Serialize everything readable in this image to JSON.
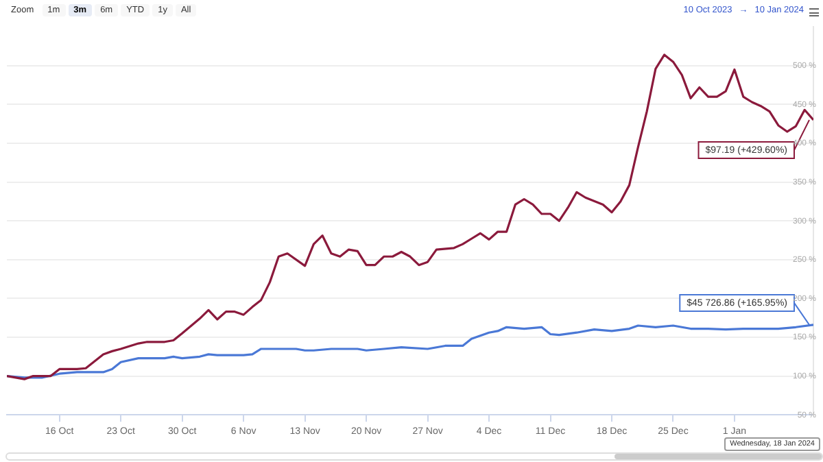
{
  "chart_data": {
    "type": "line",
    "xlim": [
      "2023-10-10",
      "2024-01-10"
    ],
    "xticks": [
      {
        "value": "2023-10-16",
        "label": "16 Oct"
      },
      {
        "value": "2023-10-23",
        "label": "23 Oct"
      },
      {
        "value": "2023-10-30",
        "label": "30 Oct"
      },
      {
        "value": "2023-11-06",
        "label": "6 Nov"
      },
      {
        "value": "2023-11-13",
        "label": "13 Nov"
      },
      {
        "value": "2023-11-20",
        "label": "20 Nov"
      },
      {
        "value": "2023-11-27",
        "label": "27 Nov"
      },
      {
        "value": "2023-12-04",
        "label": "4 Dec"
      },
      {
        "value": "2023-12-11",
        "label": "11 Dec"
      },
      {
        "value": "2023-12-18",
        "label": "18 Dec"
      },
      {
        "value": "2023-12-25",
        "label": "25 Dec"
      },
      {
        "value": "2024-01-01",
        "label": "1 Jan"
      }
    ],
    "ylim": [
      50,
      550
    ],
    "yticks": [
      {
        "value": 50,
        "label": "50 %"
      },
      {
        "value": 100,
        "label": "100 %"
      },
      {
        "value": 150,
        "label": "150 %"
      },
      {
        "value": 200,
        "label": "200 %"
      },
      {
        "value": 250,
        "label": "250 %"
      },
      {
        "value": 300,
        "label": "300 %"
      },
      {
        "value": 350,
        "label": "350 %"
      },
      {
        "value": 400,
        "label": "400 %"
      },
      {
        "value": 450,
        "label": "450 %"
      },
      {
        "value": 500,
        "label": "500 %"
      }
    ],
    "grid": "y",
    "legend": false,
    "marker": "none",
    "line_style": "solid",
    "series": [
      {
        "color": "#8b1a3c",
        "x": [
          "2023-10-10",
          "2023-10-12",
          "2023-10-13",
          "2023-10-15",
          "2023-10-16",
          "2023-10-18",
          "2023-10-19",
          "2023-10-21",
          "2023-10-22",
          "2023-10-23",
          "2023-10-25",
          "2023-10-26",
          "2023-10-28",
          "2023-10-29",
          "2023-10-30",
          "2023-11-01",
          "2023-11-02",
          "2023-11-03",
          "2023-11-04",
          "2023-11-05",
          "2023-11-06",
          "2023-11-07",
          "2023-11-08",
          "2023-11-09",
          "2023-11-10",
          "2023-11-11",
          "2023-11-13",
          "2023-11-14",
          "2023-11-15",
          "2023-11-16",
          "2023-11-17",
          "2023-11-18",
          "2023-11-19",
          "2023-11-20",
          "2023-11-21",
          "2023-11-22",
          "2023-11-23",
          "2023-11-24",
          "2023-11-25",
          "2023-11-26",
          "2023-11-27",
          "2023-11-28",
          "2023-11-30",
          "2023-12-01",
          "2023-12-02",
          "2023-12-03",
          "2023-12-04",
          "2023-12-05",
          "2023-12-06",
          "2023-12-07",
          "2023-12-08",
          "2023-12-09",
          "2023-12-10",
          "2023-12-11",
          "2023-12-12",
          "2023-12-13",
          "2023-12-14",
          "2023-12-15",
          "2023-12-17",
          "2023-12-18",
          "2023-12-19",
          "2023-12-20",
          "2023-12-21",
          "2023-12-22",
          "2023-12-23",
          "2023-12-24",
          "2023-12-25",
          "2023-12-26",
          "2023-12-27",
          "2023-12-28",
          "2023-12-29",
          "2023-12-30",
          "2023-12-31",
          "2024-01-01",
          "2024-01-02",
          "2024-01-03",
          "2024-01-04",
          "2024-01-05",
          "2024-01-06",
          "2024-01-07",
          "2024-01-08",
          "2024-01-09",
          "2024-01-10"
        ],
        "values": [
          100,
          96,
          100,
          100,
          109,
          109,
          110,
          128,
          132,
          135,
          142,
          144,
          144,
          146,
          155,
          174,
          185,
          173,
          183,
          183,
          179,
          189,
          198,
          221,
          254,
          258,
          242,
          270,
          281,
          258,
          254,
          263,
          261,
          243,
          243,
          254,
          254,
          260,
          254,
          243,
          247,
          263,
          265,
          270,
          277,
          284,
          276,
          286,
          286,
          321,
          328,
          321,
          309,
          309,
          300,
          317,
          337,
          330,
          321,
          311,
          325,
          346,
          395,
          441,
          496,
          514,
          505,
          488,
          458,
          472,
          460,
          460,
          467,
          495,
          460,
          453,
          448,
          441,
          423,
          415,
          422,
          443,
          430
        ]
      },
      {
        "color": "#4a78d6",
        "x": [
          "2023-10-10",
          "2023-10-12",
          "2023-10-14",
          "2023-10-16",
          "2023-10-18",
          "2023-10-19",
          "2023-10-21",
          "2023-10-22",
          "2023-10-23",
          "2023-10-25",
          "2023-10-26",
          "2023-10-28",
          "2023-10-29",
          "2023-10-30",
          "2023-11-01",
          "2023-11-02",
          "2023-11-03",
          "2023-11-04",
          "2023-11-06",
          "2023-11-07",
          "2023-11-08",
          "2023-11-09",
          "2023-11-11",
          "2023-11-12",
          "2023-11-13",
          "2023-11-14",
          "2023-11-16",
          "2023-11-17",
          "2023-11-19",
          "2023-11-20",
          "2023-11-22",
          "2023-11-24",
          "2023-11-27",
          "2023-11-29",
          "2023-12-01",
          "2023-12-02",
          "2023-12-04",
          "2023-12-05",
          "2023-12-06",
          "2023-12-08",
          "2023-12-10",
          "2023-12-11",
          "2023-12-12",
          "2023-12-14",
          "2023-12-16",
          "2023-12-18",
          "2023-12-20",
          "2023-12-21",
          "2023-12-23",
          "2023-12-25",
          "2023-12-27",
          "2023-12-29",
          "2023-12-31",
          "2024-01-02",
          "2024-01-04",
          "2024-01-06",
          "2024-01-08",
          "2024-01-10"
        ],
        "values": [
          100,
          98,
          98,
          103,
          105,
          105,
          105,
          109,
          118,
          123,
          123,
          123,
          125,
          123,
          125,
          128,
          127,
          127,
          127,
          128,
          135,
          135,
          135,
          135,
          133,
          133,
          135,
          135,
          135,
          133,
          135,
          137,
          135,
          139,
          139,
          148,
          156,
          158,
          163,
          161,
          163,
          154,
          153,
          156,
          160,
          158,
          161,
          165,
          163,
          165,
          161,
          161,
          160,
          161,
          161,
          161,
          163,
          166
        ]
      }
    ],
    "annotations": [
      "Zoom",
      "1m",
      "3m",
      "6m",
      "YTD",
      "1y",
      "All",
      "10 Oct 2023",
      "→",
      "10 Jan 2024",
      "Wednesday, 18 Jan 2024",
      {
        "text": "$97.19 (+429.60%)",
        "x": "2024-01-10",
        "y": 430
      },
      {
        "text": "$45 726.86 (+165.95%)",
        "x": "2024-01-10",
        "y": 166
      }
    ]
  }
}
